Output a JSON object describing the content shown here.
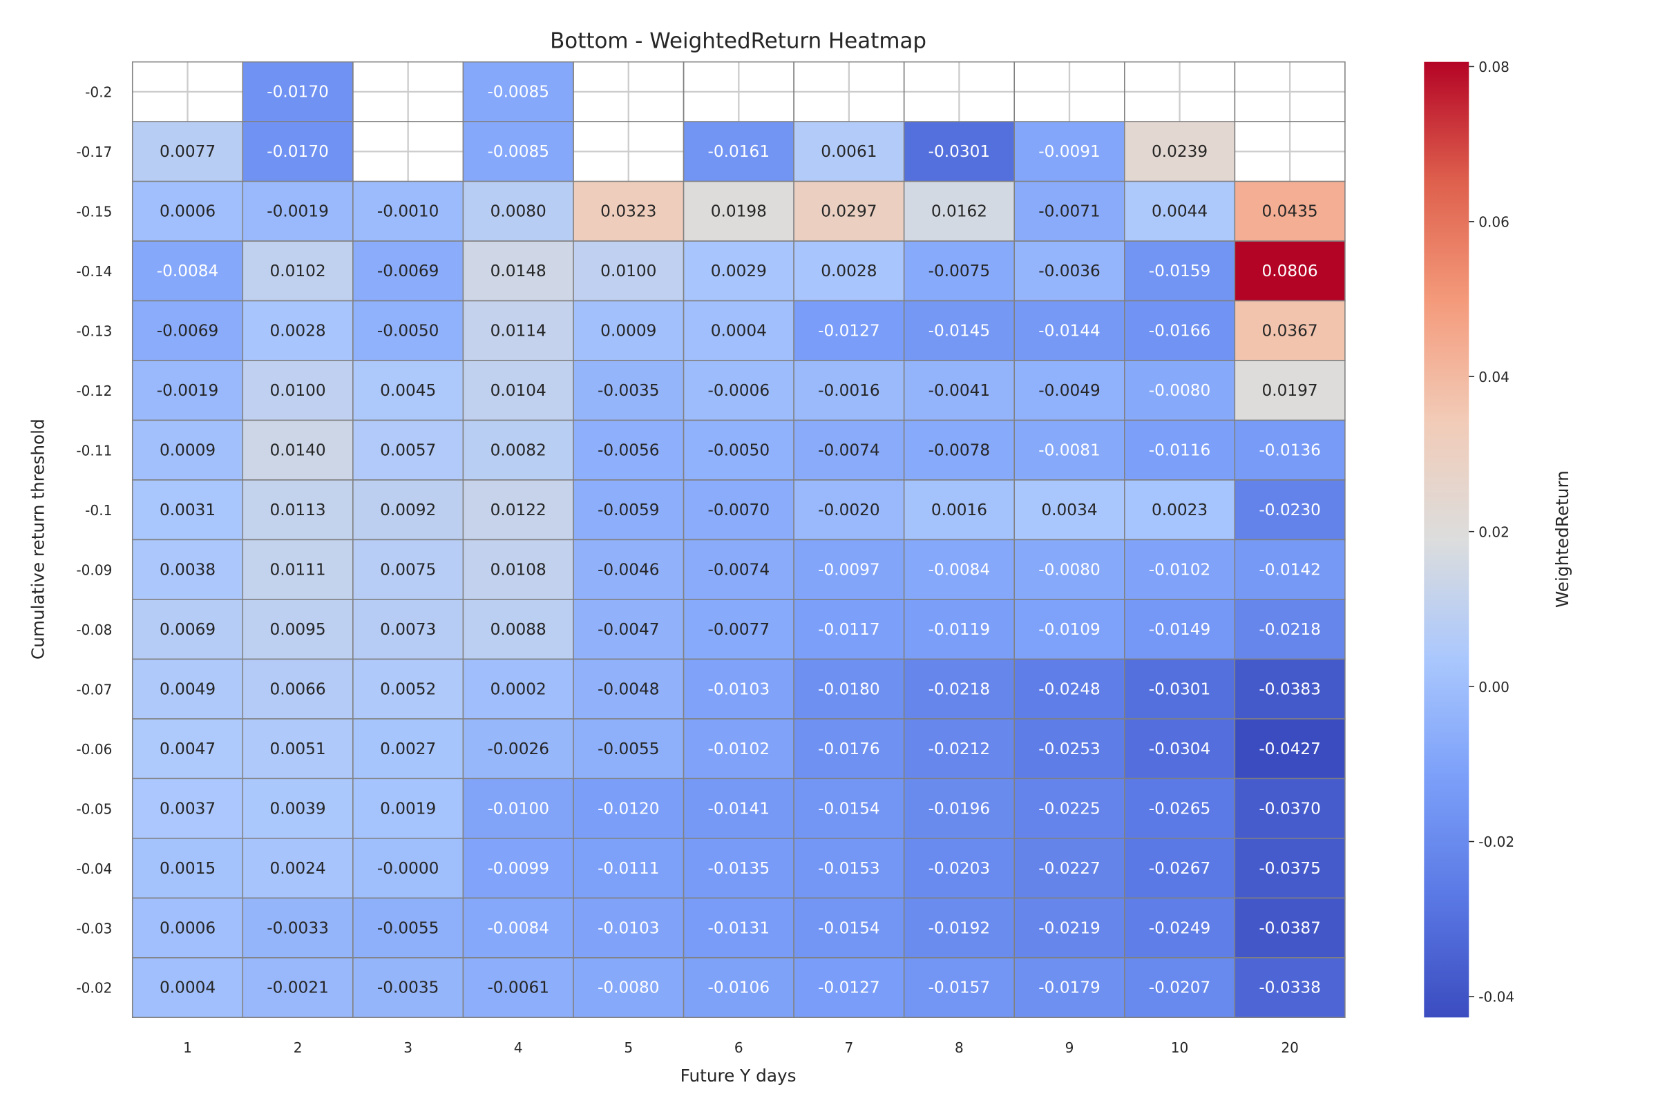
{
  "chart_data": {
    "type": "heatmap",
    "title": "Bottom - WeightedReturn Heatmap",
    "xlabel": "Future Y days",
    "ylabel": "Cumulative return threshold",
    "colorbar_label": "WeightedReturn",
    "colormap": "coolwarm",
    "vmin": -0.0427,
    "vmax": 0.0806,
    "colorbar_ticks": [
      "0.08",
      "0.06",
      "0.04",
      "0.02",
      "0.00",
      "-0.02",
      "-0.04"
    ],
    "x": [
      "1",
      "2",
      "3",
      "4",
      "5",
      "6",
      "7",
      "8",
      "9",
      "10",
      "20"
    ],
    "y": [
      "-0.2",
      "-0.17",
      "-0.15",
      "-0.14",
      "-0.13",
      "-0.12",
      "-0.11",
      "-0.1",
      "-0.09",
      "-0.08",
      "-0.07",
      "-0.06",
      "-0.05",
      "-0.04",
      "-0.03",
      "-0.02"
    ],
    "values": [
      [
        null,
        "-0.0170",
        null,
        "-0.0085",
        null,
        null,
        null,
        null,
        null,
        null,
        null
      ],
      [
        "0.0077",
        "-0.0170",
        null,
        "-0.0085",
        null,
        "-0.0161",
        "0.0061",
        "-0.0301",
        "-0.0091",
        "0.0239",
        null
      ],
      [
        "0.0006",
        "-0.0019",
        "-0.0010",
        "0.0080",
        "0.0323",
        "0.0198",
        "0.0297",
        "0.0162",
        "-0.0071",
        "0.0044",
        "0.0435"
      ],
      [
        "-0.0084",
        "0.0102",
        "-0.0069",
        "0.0148",
        "0.0100",
        "0.0029",
        "0.0028",
        "-0.0075",
        "-0.0036",
        "-0.0159",
        "0.0806"
      ],
      [
        "-0.0069",
        "0.0028",
        "-0.0050",
        "0.0114",
        "0.0009",
        "0.0004",
        "-0.0127",
        "-0.0145",
        "-0.0144",
        "-0.0166",
        "0.0367"
      ],
      [
        "-0.0019",
        "0.0100",
        "0.0045",
        "0.0104",
        "-0.0035",
        "-0.0006",
        "-0.0016",
        "-0.0041",
        "-0.0049",
        "-0.0080",
        "0.0197"
      ],
      [
        "0.0009",
        "0.0140",
        "0.0057",
        "0.0082",
        "-0.0056",
        "-0.0050",
        "-0.0074",
        "-0.0078",
        "-0.0081",
        "-0.0116",
        "-0.0136"
      ],
      [
        "0.0031",
        "0.0113",
        "0.0092",
        "0.0122",
        "-0.0059",
        "-0.0070",
        "-0.0020",
        "0.0016",
        "0.0034",
        "0.0023",
        "-0.0230"
      ],
      [
        "0.0038",
        "0.0111",
        "0.0075",
        "0.0108",
        "-0.0046",
        "-0.0074",
        "-0.0097",
        "-0.0084",
        "-0.0080",
        "-0.0102",
        "-0.0142"
      ],
      [
        "0.0069",
        "0.0095",
        "0.0073",
        "0.0088",
        "-0.0047",
        "-0.0077",
        "-0.0117",
        "-0.0119",
        "-0.0109",
        "-0.0149",
        "-0.0218"
      ],
      [
        "0.0049",
        "0.0066",
        "0.0052",
        "0.0002",
        "-0.0048",
        "-0.0103",
        "-0.0180",
        "-0.0218",
        "-0.0248",
        "-0.0301",
        "-0.0383"
      ],
      [
        "0.0047",
        "0.0051",
        "0.0027",
        "-0.0026",
        "-0.0055",
        "-0.0102",
        "-0.0176",
        "-0.0212",
        "-0.0253",
        "-0.0304",
        "-0.0427"
      ],
      [
        "0.0037",
        "0.0039",
        "0.0019",
        "-0.0100",
        "-0.0120",
        "-0.0141",
        "-0.0154",
        "-0.0196",
        "-0.0225",
        "-0.0265",
        "-0.0370"
      ],
      [
        "0.0015",
        "0.0024",
        "-0.0000",
        "-0.0099",
        "-0.0111",
        "-0.0135",
        "-0.0153",
        "-0.0203",
        "-0.0227",
        "-0.0267",
        "-0.0375"
      ],
      [
        "0.0006",
        "-0.0033",
        "-0.0055",
        "-0.0084",
        "-0.0103",
        "-0.0131",
        "-0.0154",
        "-0.0192",
        "-0.0219",
        "-0.0249",
        "-0.0387"
      ],
      [
        "0.0004",
        "-0.0021",
        "-0.0035",
        "-0.0061",
        "-0.0080",
        "-0.0106",
        "-0.0127",
        "-0.0157",
        "-0.0179",
        "-0.0207",
        "-0.0338"
      ]
    ]
  }
}
